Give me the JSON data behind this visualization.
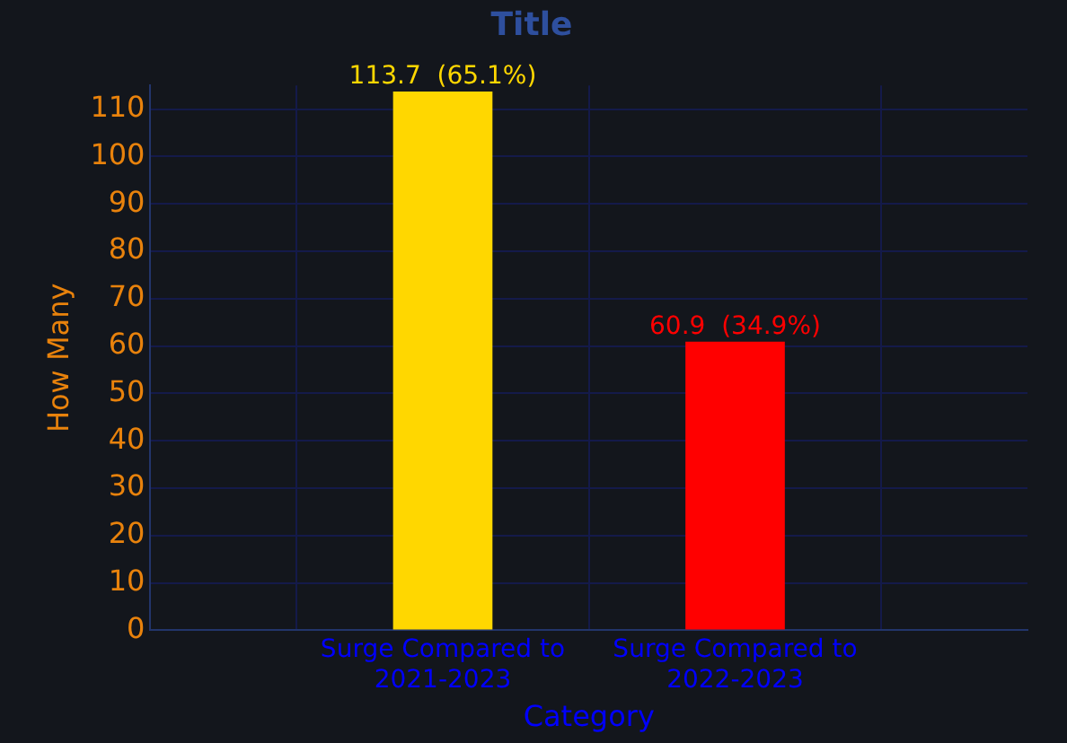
{
  "chart_data": {
    "type": "bar",
    "title": "Title",
    "xlabel": "Category",
    "ylabel": "How Many",
    "categories": [
      "Surge Compared to\n2021-2023",
      "Surge Compared to\n2022-2023"
    ],
    "values": [
      113.7,
      60.9
    ],
    "colors": [
      "#ffd700",
      "#ff0000"
    ],
    "value_labels": [
      "113.7  (65.1%)",
      "60.9  (34.9%)"
    ],
    "ylim": [
      0,
      115
    ],
    "yticks": [
      0,
      10,
      20,
      30,
      40,
      50,
      60,
      70,
      80,
      90,
      100,
      110
    ],
    "grid": true,
    "legend": false
  }
}
